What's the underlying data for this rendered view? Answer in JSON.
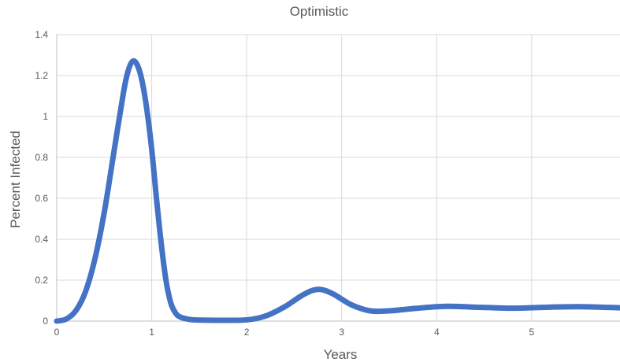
{
  "chart_data": {
    "type": "line",
    "title": "Optimistic",
    "xlabel": "Years",
    "ylabel": "Percent Infected",
    "xlim": [
      0,
      5.93
    ],
    "ylim": [
      0,
      1.4
    ],
    "x_ticks": [
      "0",
      "1",
      "2",
      "3",
      "4",
      "5"
    ],
    "y_ticks": [
      "0",
      "0.2",
      "0.4",
      "0.6",
      "0.8",
      "1",
      "1.2",
      "1.4"
    ],
    "grid": true,
    "legend": "none",
    "color": "#4472c4",
    "series": [
      {
        "x": [
          0,
          0.1,
          0.2,
          0.3,
          0.4,
          0.5,
          0.6,
          0.7,
          0.75,
          0.8,
          0.85,
          0.9,
          0.95,
          1.0,
          1.05,
          1.1,
          1.15,
          1.2,
          1.25,
          1.3,
          1.4,
          1.5,
          1.7,
          2.0,
          2.2,
          2.4,
          2.6,
          2.75,
          2.9,
          3.1,
          3.3,
          3.5,
          3.8,
          4.1,
          4.4,
          4.8,
          5.1,
          5.5,
          5.93
        ],
        "values": [
          0,
          0.01,
          0.05,
          0.14,
          0.3,
          0.53,
          0.82,
          1.11,
          1.22,
          1.27,
          1.25,
          1.17,
          1.03,
          0.84,
          0.6,
          0.38,
          0.2,
          0.09,
          0.04,
          0.02,
          0.008,
          0.005,
          0.004,
          0.006,
          0.025,
          0.07,
          0.13,
          0.155,
          0.135,
          0.08,
          0.05,
          0.05,
          0.063,
          0.072,
          0.068,
          0.063,
          0.067,
          0.07,
          0.065
        ]
      }
    ]
  }
}
